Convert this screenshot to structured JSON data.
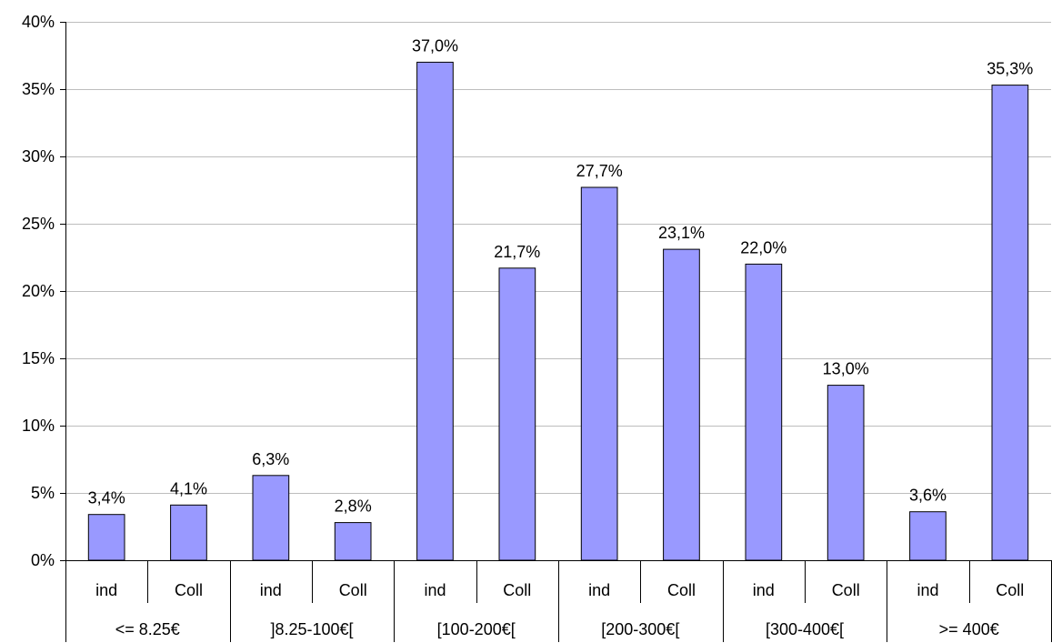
{
  "chart_data": {
    "type": "bar",
    "title": "",
    "xlabel": "",
    "ylabel": "",
    "ylim": [
      0,
      40
    ],
    "y_ticks": [
      "0%",
      "5%",
      "10%",
      "15%",
      "20%",
      "25%",
      "30%",
      "35%",
      "40%"
    ],
    "y_tick_values": [
      0,
      5,
      10,
      15,
      20,
      25,
      30,
      35,
      40
    ],
    "grid": true,
    "bar_color": "#9999ff",
    "groups": [
      {
        "label": "<= 8.25€",
        "bars": [
          {
            "category": "ind",
            "value": 3.4,
            "label": "3,4%"
          },
          {
            "category": "Coll",
            "value": 4.1,
            "label": "4,1%"
          }
        ]
      },
      {
        "label": "]8.25-100€[",
        "bars": [
          {
            "category": "ind",
            "value": 6.3,
            "label": "6,3%"
          },
          {
            "category": "Coll",
            "value": 2.8,
            "label": "2,8%"
          }
        ]
      },
      {
        "label": "[100-200€[",
        "bars": [
          {
            "category": "ind",
            "value": 37.0,
            "label": "37,0%"
          },
          {
            "category": "Coll",
            "value": 21.7,
            "label": "21,7%"
          }
        ]
      },
      {
        "label": "[200-300€[",
        "bars": [
          {
            "category": "ind",
            "value": 27.7,
            "label": "27,7%"
          },
          {
            "category": "Coll",
            "value": 23.1,
            "label": "23,1%"
          }
        ]
      },
      {
        "label": "[300-400€[",
        "bars": [
          {
            "category": "ind",
            "value": 22.0,
            "label": "22,0%"
          },
          {
            "category": "Coll",
            "value": 13.0,
            "label": "13,0%"
          }
        ]
      },
      {
        "label": ">= 400€",
        "bars": [
          {
            "category": "ind",
            "value": 3.6,
            "label": "3,6%"
          },
          {
            "category": "Coll",
            "value": 35.3,
            "label": "35,3%"
          }
        ]
      }
    ]
  }
}
